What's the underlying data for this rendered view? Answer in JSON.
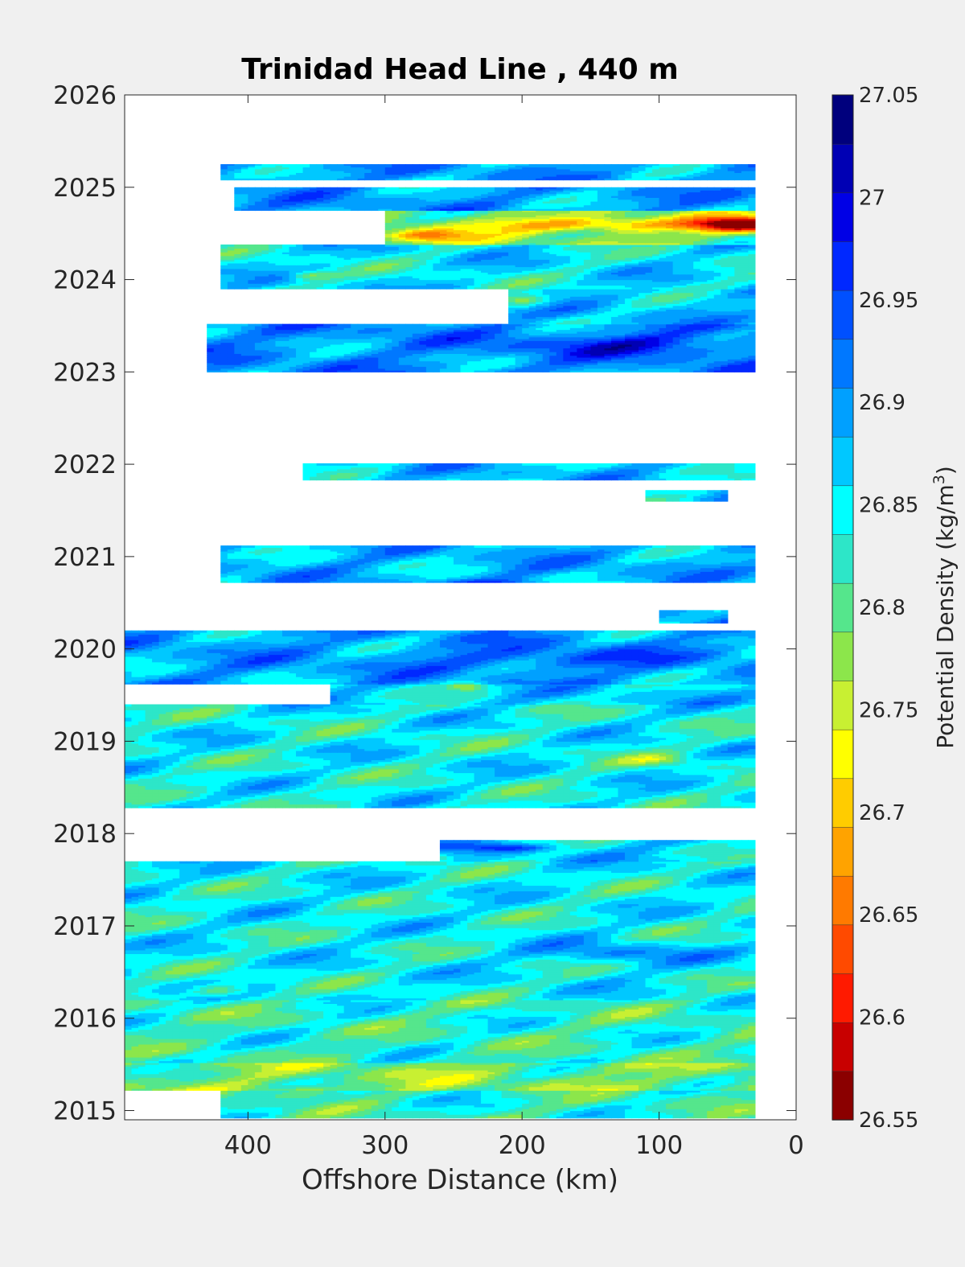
{
  "chart_data": {
    "type": "heatmap",
    "title": "Trinidad Head Line , 440 m",
    "xlabel": "Offshore Distance (km)",
    "ylabel": "",
    "xlim": [
      490,
      0
    ],
    "ylim": [
      2014.9,
      2026
    ],
    "x_reversed": true,
    "xticks": [
      400,
      300,
      200,
      100,
      0
    ],
    "yticks": [
      2015,
      2016,
      2017,
      2018,
      2019,
      2020,
      2021,
      2022,
      2023,
      2024,
      2025,
      2026
    ],
    "colorbar": {
      "label_main": "Potential Density (kg/m",
      "label_sup": "3",
      "label_end": ")",
      "min": 26.55,
      "max": 27.05,
      "step": 0.025,
      "ticks": [
        26.55,
        26.6,
        26.65,
        26.7,
        26.75,
        26.8,
        26.85,
        26.9,
        26.95,
        27,
        27.05
      ],
      "colors": [
        "#8b0000",
        "#c80000",
        "#ff1a00",
        "#ff4a00",
        "#ff7a00",
        "#ffa300",
        "#ffcc00",
        "#ffff00",
        "#c8f032",
        "#8ce64b",
        "#55e68c",
        "#2de6c8",
        "#00ffff",
        "#00c8ff",
        "#00a0ff",
        "#0078ff",
        "#0050ff",
        "#0028ff",
        "#0000e6",
        "#0000b4",
        "#00007d"
      ]
    },
    "data_bands": [
      {
        "t0": 2014.92,
        "t1": 2015.3,
        "x0": 420,
        "x1": 30,
        "base": 26.84
      },
      {
        "t0": 2015.22,
        "t1": 2015.52,
        "x0": 490,
        "x1": 30,
        "base": 26.8
      },
      {
        "t0": 2015.52,
        "t1": 2016.2,
        "x0": 490,
        "x1": 30,
        "base": 26.84
      },
      {
        "t0": 2016.2,
        "t1": 2017.7,
        "x0": 490,
        "x1": 30,
        "base": 26.86
      },
      {
        "t0": 2017.7,
        "t1": 2017.93,
        "x0": 260,
        "x1": 30,
        "base": 26.88
      },
      {
        "t0": 2018.28,
        "t1": 2019.4,
        "x0": 490,
        "x1": 30,
        "base": 26.86
      },
      {
        "t0": 2019.4,
        "t1": 2019.62,
        "x0": 340,
        "x1": 30,
        "base": 26.88
      },
      {
        "t0": 2019.62,
        "t1": 2020.2,
        "x0": 490,
        "x1": 30,
        "base": 26.91
      },
      {
        "t0": 2020.28,
        "t1": 2020.42,
        "x0": 100,
        "x1": 50,
        "base": 26.9
      },
      {
        "t0": 2020.72,
        "t1": 2021.12,
        "x0": 420,
        "x1": 30,
        "base": 26.9
      },
      {
        "t0": 2021.6,
        "t1": 2021.72,
        "x0": 110,
        "x1": 50,
        "base": 26.87
      },
      {
        "t0": 2021.83,
        "t1": 2022.01,
        "x0": 360,
        "x1": 30,
        "base": 26.89
      },
      {
        "t0": 2023.0,
        "t1": 2023.52,
        "x0": 430,
        "x1": 30,
        "base": 26.92
      },
      {
        "t0": 2023.52,
        "t1": 2023.9,
        "x0": 210,
        "x1": 30,
        "base": 26.89
      },
      {
        "t0": 2023.9,
        "t1": 2024.38,
        "x0": 420,
        "x1": 30,
        "base": 26.87
      },
      {
        "t0": 2024.38,
        "t1": 2024.75,
        "x0": 300,
        "x1": 30,
        "base": 26.8
      },
      {
        "t0": 2024.75,
        "t1": 2025.0,
        "x0": 410,
        "x1": 30,
        "base": 26.91
      },
      {
        "t0": 2025.08,
        "t1": 2025.25,
        "x0": 420,
        "x1": 30,
        "base": 26.91
      }
    ],
    "anomalies": [
      {
        "x": 40,
        "t": 2024.6,
        "amp": -0.26,
        "rx": 35,
        "rt": 0.08
      },
      {
        "x": 150,
        "t": 2024.6,
        "amp": -0.14,
        "rx": 70,
        "rt": 0.08
      },
      {
        "x": 270,
        "t": 2024.48,
        "amp": -0.12,
        "rx": 30,
        "rt": 0.07
      },
      {
        "x": 200,
        "t": 2023.78,
        "amp": -0.13,
        "rx": 20,
        "rt": 0.07
      },
      {
        "x": 355,
        "t": 2024.05,
        "amp": -0.09,
        "rx": 15,
        "rt": 0.05
      },
      {
        "x": 120,
        "t": 2023.3,
        "amp": 0.08,
        "rx": 80,
        "rt": 0.12
      },
      {
        "x": 240,
        "t": 2019.6,
        "amp": -0.1,
        "rx": 15,
        "rt": 0.05
      },
      {
        "x": 180,
        "t": 2019.9,
        "amp": 0.06,
        "rx": 90,
        "rt": 0.12
      },
      {
        "x": 220,
        "t": 2020.7,
        "amp": 0.06,
        "rx": 60,
        "rt": 0.06
      },
      {
        "x": 420,
        "t": 2016.3,
        "amp": -0.1,
        "rx": 20,
        "rt": 0.06
      },
      {
        "x": 270,
        "t": 2017.75,
        "amp": -0.09,
        "rx": 15,
        "rt": 0.05
      },
      {
        "x": 210,
        "t": 2017.85,
        "amp": 0.1,
        "rx": 30,
        "rt": 0.04
      },
      {
        "x": 130,
        "t": 2016.7,
        "amp": 0.07,
        "rx": 60,
        "rt": 0.12
      },
      {
        "x": 360,
        "t": 2015.2,
        "amp": -0.06,
        "rx": 30,
        "rt": 0.06
      },
      {
        "x": 100,
        "t": 2018.8,
        "amp": -0.06,
        "rx": 25,
        "rt": 0.06
      }
    ]
  }
}
